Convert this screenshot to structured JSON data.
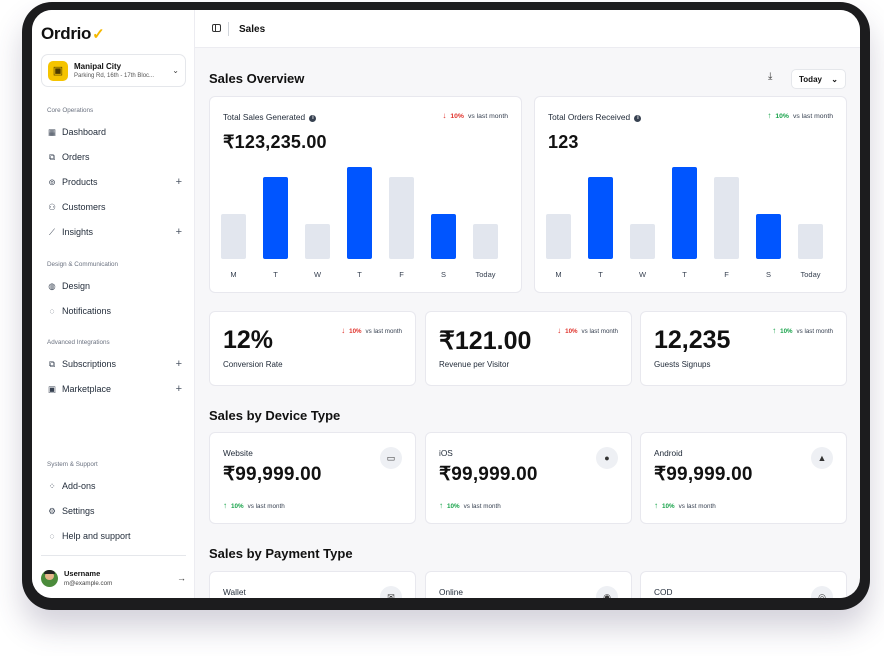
{
  "app": {
    "logo": "Ordrio",
    "logo_mark": "✓"
  },
  "store": {
    "name": "Manipal City",
    "address": "Parking Rd, 16th - 17th Bloc..."
  },
  "sidebar": {
    "sections": [
      "Core Operations",
      "Design & Communication",
      "Advanced Integrations",
      "System & Support"
    ],
    "core": [
      {
        "label": "Dashboard",
        "icon": "▦"
      },
      {
        "label": "Orders",
        "icon": "⧉"
      },
      {
        "label": "Products",
        "icon": "⊚",
        "expand": "+"
      },
      {
        "label": "Customers",
        "icon": "⚇"
      },
      {
        "label": "Insights",
        "icon": "⟋",
        "expand": "+"
      }
    ],
    "design": [
      {
        "label": "Design",
        "icon": "◍"
      },
      {
        "label": "Notifications",
        "icon": "◌"
      }
    ],
    "integrations": [
      {
        "label": "Subscriptions",
        "icon": "⧉",
        "expand": "+"
      },
      {
        "label": "Marketplace",
        "icon": "▣",
        "expand": "+"
      }
    ],
    "system": [
      {
        "label": "Add-ons",
        "icon": "⁘"
      },
      {
        "label": "Settings",
        "icon": "⚙"
      },
      {
        "label": "Help and support",
        "icon": "◌"
      }
    ]
  },
  "user": {
    "name": "Username",
    "email": "m@example.com"
  },
  "header": {
    "breadcrumb": "Sales"
  },
  "overview": {
    "title": "Sales Overview",
    "range": "Today"
  },
  "charts": {
    "days": [
      "M",
      "T",
      "W",
      "T",
      "F",
      "S",
      "Today"
    ],
    "sales": {
      "title": "Total Sales Generated",
      "value": "₹123,235.00",
      "trend_pct": "10%",
      "trend_text": "vs last month",
      "bars": [
        45,
        82,
        35,
        92,
        82,
        45,
        35
      ],
      "highlight": [
        false,
        true,
        false,
        true,
        false,
        true,
        false
      ]
    },
    "orders": {
      "title": "Total Orders Received",
      "value": "123",
      "trend_pct": "10%",
      "trend_text": "vs last month",
      "bars": [
        45,
        82,
        35,
        92,
        82,
        45,
        35
      ],
      "highlight": [
        false,
        true,
        false,
        true,
        false,
        true,
        false
      ]
    }
  },
  "chart_data": [
    {
      "type": "bar",
      "title": "Total Sales Generated",
      "categories": [
        "M",
        "T",
        "W",
        "T",
        "F",
        "S",
        "Today"
      ],
      "values": [
        45,
        82,
        35,
        92,
        82,
        45,
        35
      ]
    },
    {
      "type": "bar",
      "title": "Total Orders Received",
      "categories": [
        "M",
        "T",
        "W",
        "T",
        "F",
        "S",
        "Today"
      ],
      "values": [
        45,
        82,
        35,
        92,
        82,
        45,
        35
      ]
    }
  ],
  "metrics": [
    {
      "value": "12%",
      "label": "Conversion Rate",
      "trend_pct": "10%",
      "trend_text": "vs last month"
    },
    {
      "value": "₹121.00",
      "label": "Revenue per Visitor",
      "trend_pct": "10%",
      "trend_text": "vs last month"
    },
    {
      "value": "12,235",
      "label": "Guests Signups",
      "trend_pct": "10%",
      "trend_text": "vs last month"
    }
  ],
  "devices": {
    "title": "Sales by Device Type",
    "items": [
      {
        "name": "Website",
        "value": "₹99,999.00",
        "trend_pct": "10%",
        "trend_text": "vs last month",
        "icon": "▭"
      },
      {
        "name": "iOS",
        "value": "₹99,999.00",
        "trend_pct": "10%",
        "trend_text": "vs last month",
        "icon": "●"
      },
      {
        "name": "Android",
        "value": "₹99,999.00",
        "trend_pct": "10%",
        "trend_text": "vs last month",
        "icon": "▲"
      }
    ]
  },
  "payments": {
    "title": "Sales by Payment Type",
    "items": [
      {
        "name": "Wallet",
        "icon": "✉"
      },
      {
        "name": "Online",
        "icon": "◉"
      },
      {
        "name": "COD",
        "icon": "◎"
      }
    ]
  },
  "colors": {
    "accent": "#0055ff",
    "bar_muted": "#e2e6ee",
    "up": "#18a34a",
    "down": "#e0322b"
  }
}
